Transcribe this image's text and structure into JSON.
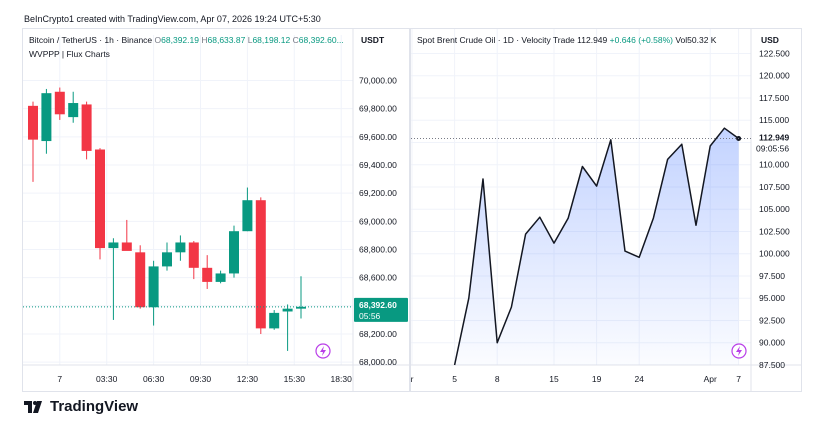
{
  "credit": "BeInCrypto1 created with TradingView.com, Apr 07, 2026 19:24 UTC+5:30",
  "brand": "TradingView",
  "colors": {
    "up": "#089981",
    "down": "#f23645",
    "line": "#131722",
    "area": "#2962ff",
    "grid": "#f0f3fa"
  },
  "left": {
    "title": "Bitcoin / TetherUS · 1h · Binance",
    "o": "O",
    "o_val": "68,392.19",
    "h": "H",
    "h_val": "68,633.87",
    "l": "L",
    "l_val": "68,198.12",
    "c": "C",
    "c_val": "68,392.60...",
    "indicator": "WVPPP | Flux Charts",
    "currency": "USDT",
    "price_badge": "68,392.60",
    "countdown": "05:56"
  },
  "right": {
    "title": "Spot Brent Crude Oil · 1D · Velocity Trade",
    "last": "112.949",
    "change": "+0.646 (+0.58%)",
    "vol": "Vol50.32 K",
    "currency": "USD",
    "price_badge": "112.949",
    "countdown": "09:05:56"
  },
  "chart_data": [
    {
      "type": "candlestick",
      "title": "Bitcoin / TetherUS · 1h · Binance",
      "ylim": [
        67980,
        70110
      ],
      "yticks": [
        68000,
        68200,
        68400,
        68600,
        68800,
        69000,
        69200,
        69400,
        69600,
        69800,
        70000
      ],
      "ytick_labels": [
        "68,000.00",
        "68,200.00",
        "68,400.00",
        "68,600.00",
        "68,800.00",
        "69,000.00",
        "69,200.00",
        "69,400.00",
        "69,600.00",
        "69,800.00",
        "70,000.00"
      ],
      "xtick_labels": [
        "7",
        "03:30",
        "06:30",
        "09:30",
        "12:30",
        "15:30",
        "18:30"
      ],
      "xtick_positions": [
        2,
        5.5,
        9,
        12.5,
        16,
        19.5,
        23
      ],
      "current_price": 68392.6,
      "candles": [
        {
          "o": 69820,
          "h": 69850,
          "l": 69280,
          "c": 69580
        },
        {
          "o": 69570,
          "h": 69940,
          "l": 69480,
          "c": 69910
        },
        {
          "o": 69920,
          "h": 69950,
          "l": 69720,
          "c": 69760
        },
        {
          "o": 69740,
          "h": 69920,
          "l": 69700,
          "c": 69840
        },
        {
          "o": 69830,
          "h": 69850,
          "l": 69440,
          "c": 69500
        },
        {
          "o": 69510,
          "h": 69520,
          "l": 68730,
          "c": 68810
        },
        {
          "o": 68810,
          "h": 68880,
          "l": 68300,
          "c": 68850
        },
        {
          "o": 68850,
          "h": 69010,
          "l": 68800,
          "c": 68790
        },
        {
          "o": 68780,
          "h": 68830,
          "l": 68380,
          "c": 68390
        },
        {
          "o": 68390,
          "h": 68720,
          "l": 68260,
          "c": 68680
        },
        {
          "o": 68680,
          "h": 68850,
          "l": 68650,
          "c": 68780
        },
        {
          "o": 68780,
          "h": 68900,
          "l": 68720,
          "c": 68850
        },
        {
          "o": 68850,
          "h": 68860,
          "l": 68590,
          "c": 68670
        },
        {
          "o": 68670,
          "h": 68760,
          "l": 68520,
          "c": 68570
        },
        {
          "o": 68570,
          "h": 68650,
          "l": 68560,
          "c": 68630
        },
        {
          "o": 68630,
          "h": 68970,
          "l": 68600,
          "c": 68930
        },
        {
          "o": 68930,
          "h": 69240,
          "l": 68930,
          "c": 69150
        },
        {
          "o": 69150,
          "h": 69170,
          "l": 68200,
          "c": 68240
        },
        {
          "o": 68240,
          "h": 68370,
          "l": 68230,
          "c": 68350
        },
        {
          "o": 68360,
          "h": 68410,
          "l": 68080,
          "c": 68380
        },
        {
          "o": 68380,
          "h": 68610,
          "l": 68310,
          "c": 68393
        }
      ]
    },
    {
      "type": "area",
      "title": "Spot Brent Crude Oil · 1D · Velocity Trade",
      "ylim": [
        87.5,
        123.0
      ],
      "yticks": [
        87.5,
        90,
        92.5,
        95,
        97.5,
        100,
        102.5,
        105,
        107.5,
        110,
        112.5,
        115,
        117.5,
        120,
        122.5
      ],
      "ytick_labels": [
        "87.500",
        "90.000",
        "92.500",
        "95.000",
        "97.500",
        "100.000",
        "102.500",
        "105.000",
        "107.500",
        "110.000",
        "112.500",
        "115.000",
        "117.500",
        "120.000",
        "122.500"
      ],
      "xtick_labels": [
        "r",
        "5",
        "8",
        "15",
        "19",
        "24",
        "Apr",
        "7"
      ],
      "xtick_positions": [
        0,
        3,
        6,
        10,
        13,
        16,
        21,
        23
      ],
      "current_price": 112.949,
      "x": [
        3,
        4,
        5,
        6,
        7,
        8,
        9,
        10,
        11,
        12,
        13,
        14,
        15,
        16,
        17,
        18,
        19,
        20,
        21,
        22,
        23
      ],
      "values": [
        87.2,
        95.0,
        108.4,
        90.0,
        94.0,
        102.2,
        104.1,
        101.2,
        104.0,
        109.8,
        107.6,
        112.8,
        100.3,
        99.6,
        104.0,
        110.6,
        112.3,
        103.2,
        112.1,
        114.1,
        112.949
      ]
    }
  ]
}
